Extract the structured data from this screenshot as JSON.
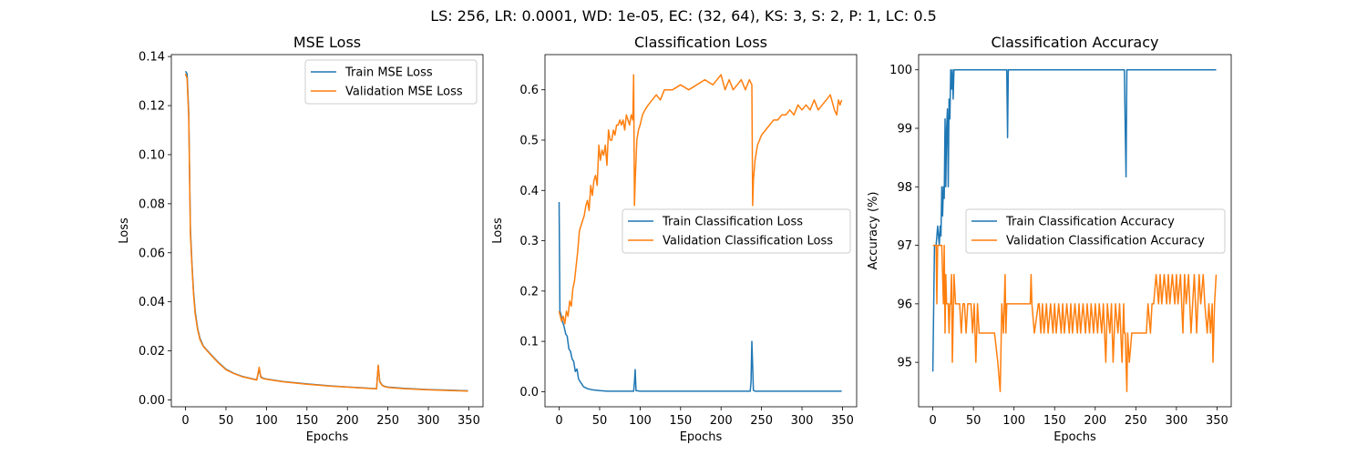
{
  "figure": {
    "suptitle": "LS: 256, LR: 0.0001, WD: 1e-05, EC: (32, 64), KS: 3, S: 2, P: 1, LC: 0.5"
  },
  "colors": {
    "train": "#1f77b4",
    "validation": "#ff7f0e"
  },
  "chart_data": [
    {
      "type": "line",
      "title": "MSE Loss",
      "xlabel": "Epochs",
      "ylabel": "Loss",
      "xlim": [
        -17.5,
        367.5
      ],
      "ylim": [
        -0.0028,
        0.1408
      ],
      "xticks": [
        0,
        50,
        100,
        150,
        200,
        250,
        300,
        350
      ],
      "xtick_labels": [
        "0",
        "50",
        "100",
        "150",
        "200",
        "250",
        "300",
        "350"
      ],
      "yticks": [
        0,
        0.02,
        0.04,
        0.06,
        0.08,
        0.1,
        0.12,
        0.14
      ],
      "ytick_labels": [
        "0.00",
        "0.02",
        "0.04",
        "0.06",
        "0.08",
        "0.10",
        "0.12",
        "0.14"
      ],
      "legend_position": "top-right",
      "series": [
        {
          "name": "Train MSE Loss",
          "color": "#1f77b4",
          "x": [
            0,
            2,
            4,
            6,
            8,
            10,
            12,
            15,
            18,
            22,
            26,
            30,
            40,
            50,
            60,
            70,
            80,
            88,
            91,
            93,
            96,
            100,
            120,
            150,
            180,
            200,
            220,
            236,
            238,
            240,
            243,
            246,
            250,
            270,
            300,
            330,
            349
          ],
          "y": [
            0.134,
            0.133,
            0.117,
            0.07,
            0.055,
            0.044,
            0.036,
            0.029,
            0.025,
            0.022,
            0.0205,
            0.019,
            0.0155,
            0.0125,
            0.0108,
            0.0096,
            0.0088,
            0.0082,
            0.0125,
            0.0095,
            0.0088,
            0.0085,
            0.0075,
            0.0065,
            0.0057,
            0.0053,
            0.0049,
            0.0046,
            0.0138,
            0.0075,
            0.006,
            0.0055,
            0.0052,
            0.0047,
            0.0042,
            0.0039,
            0.0037
          ]
        },
        {
          "name": "Validation MSE Loss",
          "color": "#ff7f0e",
          "x": [
            0,
            2,
            4,
            6,
            8,
            10,
            12,
            15,
            18,
            22,
            26,
            30,
            40,
            50,
            60,
            70,
            80,
            88,
            91,
            93,
            96,
            100,
            120,
            150,
            180,
            200,
            220,
            236,
            238,
            240,
            243,
            246,
            250,
            270,
            300,
            330,
            349
          ],
          "y": [
            0.133,
            0.131,
            0.115,
            0.068,
            0.054,
            0.043,
            0.035,
            0.0285,
            0.0245,
            0.0218,
            0.0203,
            0.0188,
            0.0153,
            0.0123,
            0.0107,
            0.0095,
            0.0087,
            0.0081,
            0.0133,
            0.0092,
            0.0087,
            0.0084,
            0.0074,
            0.0064,
            0.0056,
            0.0052,
            0.0048,
            0.0045,
            0.0142,
            0.0073,
            0.0059,
            0.0054,
            0.0051,
            0.0046,
            0.0041,
            0.0038,
            0.0036
          ]
        }
      ]
    },
    {
      "type": "line",
      "title": "Classification Loss",
      "xlabel": "Epochs",
      "ylabel": "Loss",
      "xlim": [
        -17.5,
        367.5
      ],
      "ylim": [
        -0.03,
        0.67
      ],
      "xticks": [
        0,
        50,
        100,
        150,
        200,
        250,
        300,
        350
      ],
      "xtick_labels": [
        "0",
        "50",
        "100",
        "150",
        "200",
        "250",
        "300",
        "350"
      ],
      "yticks": [
        0,
        0.1,
        0.2,
        0.3,
        0.4,
        0.5,
        0.6
      ],
      "ytick_labels": [
        "0.0",
        "0.1",
        "0.2",
        "0.3",
        "0.4",
        "0.5",
        "0.6"
      ],
      "legend_position": "center-right",
      "series": [
        {
          "name": "Train Classification Loss",
          "color": "#1f77b4",
          "x": [
            0,
            1,
            2,
            4,
            6,
            8,
            10,
            12,
            14,
            16,
            18,
            20,
            22,
            24,
            26,
            28,
            30,
            35,
            40,
            45,
            50,
            60,
            80,
            92,
            93,
            94,
            95,
            100,
            150,
            200,
            236,
            237,
            238,
            239,
            240,
            242,
            260,
            300,
            349
          ],
          "y": [
            0.377,
            0.16,
            0.155,
            0.14,
            0.13,
            0.115,
            0.11,
            0.085,
            0.08,
            0.065,
            0.06,
            0.04,
            0.045,
            0.025,
            0.02,
            0.015,
            0.01,
            0.006,
            0.004,
            0.003,
            0.002,
            0.001,
            0.001,
            0.001,
            0.02,
            0.044,
            0.002,
            0.001,
            0.001,
            0.001,
            0.001,
            0.02,
            0.1,
            0.05,
            0.003,
            0.001,
            0.001,
            0.001,
            0.001
          ]
        },
        {
          "name": "Validation Classification Loss",
          "color": "#ff7f0e",
          "x": [
            0,
            3,
            5,
            7,
            9,
            11,
            13,
            15,
            17,
            19,
            21,
            23,
            25,
            27,
            29,
            31,
            33,
            35,
            37,
            39,
            41,
            43,
            45,
            47,
            49,
            51,
            53,
            55,
            57,
            59,
            61,
            63,
            65,
            67,
            69,
            71,
            73,
            75,
            77,
            79,
            81,
            83,
            85,
            87,
            89,
            91,
            92,
            93,
            94,
            95,
            96,
            98,
            100,
            103,
            106,
            110,
            115,
            120,
            125,
            130,
            140,
            150,
            160,
            170,
            180,
            190,
            200,
            205,
            210,
            215,
            220,
            225,
            230,
            235,
            238,
            239,
            240,
            242,
            245,
            250,
            255,
            260,
            265,
            270,
            275,
            280,
            285,
            290,
            295,
            300,
            305,
            310,
            315,
            320,
            325,
            330,
            335,
            340,
            343,
            345,
            347,
            349
          ],
          "y": [
            0.16,
            0.14,
            0.15,
            0.135,
            0.16,
            0.15,
            0.18,
            0.17,
            0.205,
            0.22,
            0.25,
            0.28,
            0.32,
            0.33,
            0.34,
            0.35,
            0.37,
            0.38,
            0.36,
            0.41,
            0.39,
            0.42,
            0.43,
            0.41,
            0.49,
            0.46,
            0.48,
            0.47,
            0.49,
            0.45,
            0.52,
            0.5,
            0.5,
            0.52,
            0.51,
            0.53,
            0.53,
            0.54,
            0.53,
            0.54,
            0.52,
            0.55,
            0.54,
            0.53,
            0.55,
            0.54,
            0.63,
            0.37,
            0.42,
            0.46,
            0.5,
            0.52,
            0.53,
            0.55,
            0.56,
            0.57,
            0.58,
            0.59,
            0.58,
            0.6,
            0.6,
            0.61,
            0.6,
            0.61,
            0.62,
            0.61,
            0.63,
            0.6,
            0.62,
            0.6,
            0.61,
            0.62,
            0.6,
            0.62,
            0.61,
            0.37,
            0.42,
            0.46,
            0.49,
            0.51,
            0.52,
            0.53,
            0.54,
            0.54,
            0.55,
            0.55,
            0.56,
            0.55,
            0.57,
            0.56,
            0.57,
            0.56,
            0.58,
            0.56,
            0.57,
            0.58,
            0.59,
            0.56,
            0.55,
            0.58,
            0.57,
            0.58
          ]
        }
      ]
    },
    {
      "type": "line",
      "title": "Classification Accuracy",
      "xlabel": "Epochs",
      "ylabel": "Accuracy (%)",
      "xlim": [
        -17.5,
        367.5
      ],
      "ylim": [
        94.24,
        100.26
      ],
      "xticks": [
        0,
        50,
        100,
        150,
        200,
        250,
        300,
        350
      ],
      "xtick_labels": [
        "0",
        "50",
        "100",
        "150",
        "200",
        "250",
        "300",
        "350"
      ],
      "yticks": [
        95,
        96,
        97,
        98,
        99,
        100
      ],
      "ytick_labels": [
        "95",
        "96",
        "97",
        "98",
        "99",
        "100"
      ],
      "legend_position": "center-right",
      "series": [
        {
          "name": "Train Classification Accuracy",
          "color": "#1f77b4",
          "x": [
            0,
            2,
            4,
            6,
            8,
            9,
            10,
            11,
            12,
            13,
            14,
            15,
            16,
            17,
            18,
            19,
            20,
            21,
            22,
            23,
            24,
            25,
            26,
            27,
            28,
            30,
            35,
            50,
            80,
            90,
            91,
            92,
            93,
            100,
            150,
            200,
            236,
            237,
            238,
            239,
            240,
            260,
            300,
            349
          ],
          "y": [
            94.84,
            97.0,
            97.0,
            97.33,
            97.0,
            97.33,
            97.16,
            98.0,
            97.5,
            98.0,
            97.8,
            99.16,
            98.0,
            99.0,
            99.33,
            98.0,
            99.5,
            99.16,
            100,
            99.67,
            100,
            99.5,
            100,
            100,
            100,
            100,
            100,
            100,
            100,
            100,
            100,
            98.84,
            100,
            100,
            100,
            100,
            100,
            99.0,
            98.17,
            100,
            100,
            100,
            100,
            100
          ]
        },
        {
          "name": "Validation Classification Accuracy",
          "color": "#ff7f0e",
          "x": [
            0,
            2,
            4,
            5,
            6,
            7,
            8,
            9,
            10,
            11,
            12,
            13,
            14,
            15,
            16,
            17,
            18,
            19,
            20,
            21,
            22,
            23,
            24,
            26,
            28,
            30,
            31,
            33,
            35,
            37,
            39,
            41,
            43,
            45,
            47,
            49,
            51,
            53,
            55,
            57,
            60,
            63,
            66,
            70,
            73,
            76,
            80,
            83,
            85,
            87,
            89,
            90,
            91,
            93,
            95,
            100,
            110,
            120,
            121,
            122,
            125,
            130,
            131,
            133,
            135,
            137,
            140,
            142,
            145,
            148,
            150,
            152,
            155,
            158,
            160,
            162,
            165,
            168,
            170,
            172,
            175,
            178,
            180,
            182,
            185,
            188,
            190,
            193,
            195,
            198,
            200,
            203,
            205,
            208,
            210,
            213,
            215,
            218,
            220,
            222,
            225,
            228,
            230,
            233,
            235,
            236,
            237,
            238,
            239,
            240,
            242,
            245,
            250,
            255,
            260,
            263,
            265,
            268,
            270,
            272,
            275,
            278,
            280,
            282,
            285,
            288,
            290,
            292,
            295,
            298,
            300,
            302,
            305,
            308,
            310,
            312,
            315,
            318,
            320,
            322,
            325,
            328,
            330,
            333,
            335,
            338,
            340,
            342,
            344,
            345,
            347,
            349
          ],
          "y": [
            97.0,
            97.0,
            97.0,
            96.0,
            97.0,
            97.0,
            97.0,
            97.0,
            97.0,
            97.0,
            96.5,
            96.0,
            97.0,
            95.5,
            96.5,
            96.0,
            96.0,
            96.0,
            95.5,
            96.0,
            96.0,
            96.5,
            95.0,
            96.5,
            96.0,
            96.0,
            96.0,
            96.0,
            95.5,
            96.0,
            96.0,
            95.5,
            96.0,
            96.0,
            96.0,
            95.5,
            96.0,
            95.0,
            96.0,
            95.5,
            95.5,
            95.5,
            95.5,
            95.5,
            95.5,
            95.5,
            95.0,
            94.5,
            96.0,
            95.5,
            96.5,
            95.5,
            96.0,
            96.0,
            96.0,
            96.0,
            96.0,
            96.0,
            96.5,
            96.0,
            95.5,
            96.0,
            96.0,
            95.5,
            96.0,
            95.5,
            96.0,
            95.5,
            96.0,
            95.5,
            96.0,
            95.5,
            96.0,
            95.5,
            96.0,
            95.5,
            96.0,
            95.5,
            96.0,
            95.5,
            96.0,
            95.5,
            96.0,
            95.5,
            96.0,
            95.5,
            96.0,
            95.5,
            96.0,
            95.5,
            96.0,
            95.5,
            96.0,
            95.5,
            96.0,
            95.0,
            96.0,
            95.5,
            96.0,
            95.0,
            96.0,
            95.5,
            96.0,
            95.0,
            96.0,
            95.5,
            95.5,
            95.0,
            94.5,
            95.5,
            95.0,
            95.5,
            95.5,
            95.5,
            95.5,
            95.5,
            96.0,
            95.5,
            96.0,
            96.0,
            96.5,
            96.0,
            96.5,
            96.0,
            96.5,
            96.0,
            96.5,
            96.0,
            96.5,
            96.0,
            96.5,
            96.0,
            96.5,
            95.5,
            96.5,
            96.0,
            96.5,
            95.5,
            96.0,
            96.5,
            95.5,
            96.5,
            96.0,
            96.5,
            96.0,
            95.5,
            96.0,
            95.5,
            96.0,
            95.0,
            96.0,
            96.5
          ]
        }
      ]
    }
  ]
}
